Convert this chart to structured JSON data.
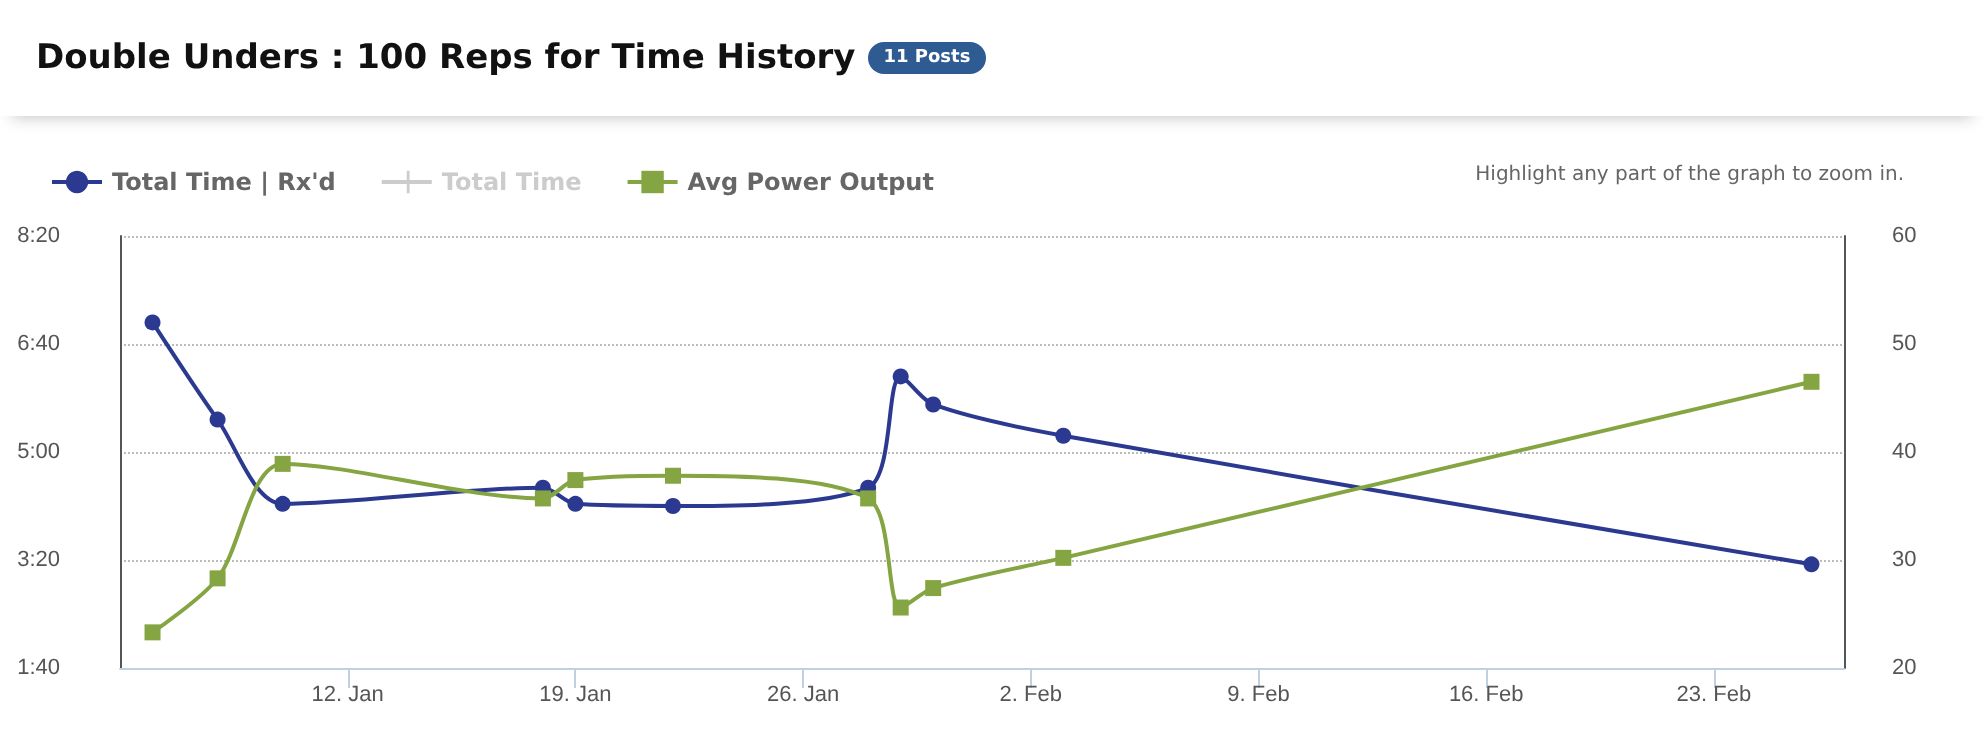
{
  "chart_data": {
    "type": "line",
    "title": "Double Unders : 100 Reps for Time History",
    "annotations": [
      "11 Posts",
      "Highlight any part of the graph to zoom in."
    ],
    "x": [
      "--01-06",
      "--01-08",
      "--01-10",
      "--01-18",
      "--01-19",
      "--01-22",
      "--01-28",
      "--01-29",
      "--01-30",
      "--02-03",
      "--02-26"
    ],
    "series": [
      {
        "name": "Total Time | Rx'd",
        "color": "#2b3990",
        "marker": "circle",
        "values": [
          420,
          330,
          252,
          267,
          252,
          250,
          267,
          370,
          344,
          315,
          196
        ]
      },
      {
        "name": "Total Time",
        "color": "#cccccc",
        "marker": "cross",
        "values": [
          null,
          null,
          null,
          null,
          null,
          null,
          null,
          null,
          null,
          null,
          null
        ]
      },
      {
        "name": "Avg Power Output",
        "color": "#84a542",
        "marker": "square",
        "axis": "y2",
        "values": [
          23.3,
          28.3,
          38.9,
          35.7,
          37.4,
          37.8,
          35.7,
          25.6,
          27.4,
          30.2,
          46.5
        ]
      }
    ],
    "xlim": [
      "--01-05",
      "--02-27"
    ],
    "xticks": [
      {
        "value": "--01-12",
        "label": "12. Jan"
      },
      {
        "value": "--01-19",
        "label": "19. Jan"
      },
      {
        "value": "--01-26",
        "label": "26. Jan"
      },
      {
        "value": "--02-02",
        "label": "2. Feb"
      },
      {
        "value": "--02-09",
        "label": "9. Feb"
      },
      {
        "value": "--02-16",
        "label": "16. Feb"
      },
      {
        "value": "--02-23",
        "label": "23. Feb"
      }
    ],
    "ylim": [
      100,
      500
    ],
    "yticks": [
      {
        "value": 100,
        "label": "1:40"
      },
      {
        "value": 200,
        "label": "3:20"
      },
      {
        "value": 300,
        "label": "5:00"
      },
      {
        "value": 400,
        "label": "6:40"
      },
      {
        "value": 500,
        "label": "8:20"
      }
    ],
    "y2lim": [
      20,
      60
    ],
    "y2ticks": [
      20,
      30,
      40,
      50,
      60
    ],
    "grid": "y",
    "legend": "top left",
    "line_style": "solid"
  }
}
